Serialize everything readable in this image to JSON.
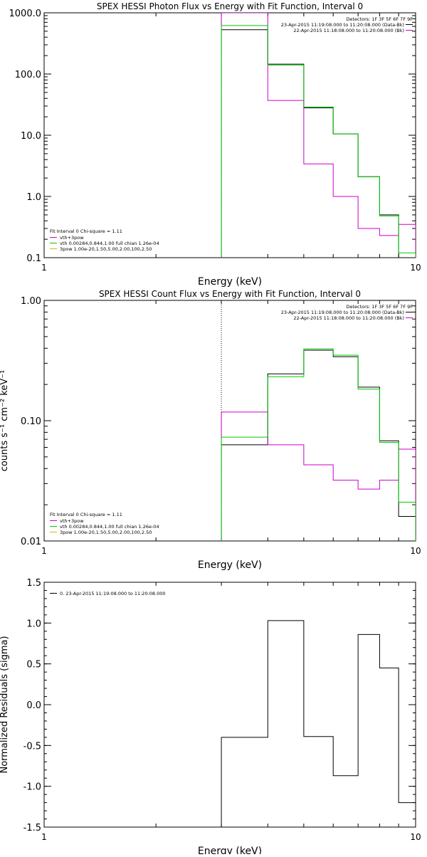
{
  "chart_data": [
    {
      "type": "line",
      "title": "SPEX HESSI Photon Flux vs Energy with Fit Function, Interval 0",
      "xlabel": "Energy (keV)",
      "ylabel": "",
      "xscale": "log",
      "yscale": "log",
      "xlim": [
        1,
        10
      ],
      "ylim": [
        0.1,
        1000
      ],
      "xticks": [
        "1",
        "10"
      ],
      "yticks": [
        {
          "v": 1000,
          "label": "1000.0"
        },
        {
          "v": 100,
          "label": "100.0"
        },
        {
          "v": 10,
          "label": "10.0"
        },
        {
          "v": 1,
          "label": "1.0"
        },
        {
          "v": 0.1,
          "label": "0.1"
        }
      ],
      "fit_line_x": 3,
      "bin_edges": [
        3,
        4,
        5,
        6,
        7,
        8,
        9,
        10
      ],
      "series": [
        {
          "color": "#000000",
          "values": [
            530,
            145,
            28,
            10.5,
            2.1,
            0.5,
            0.1
          ]
        },
        {
          "color": "#cc00cc",
          "values": [
            1000,
            37,
            3.4,
            1.0,
            0.3,
            0.23,
            0.35
          ]
        },
        {
          "color": "#00cc00",
          "values": [
            620,
            140,
            29,
            10.5,
            2.1,
            0.48,
            0.12
          ]
        }
      ],
      "legend_right": {
        "header": "Detectors: 1F 3F 5F 6F 7F 9F",
        "items": [
          {
            "color": "#000000",
            "text": "23-Apr-2015 11:19:08.000 to 11:20:08.000 (Data-Bk)"
          },
          {
            "color": "#cc00cc",
            "text": "22-Apr-2015 11:18:08.000 to 11:20:08.000 (Bk)"
          }
        ]
      },
      "legend_left": {
        "header": "Fit Interval 0   Chi-square = 1.11",
        "items": [
          {
            "color": "#cc00cc",
            "text": "vth+3pow"
          },
          {
            "color": "#00cc00",
            "text": "vth 0.00284,0.844,1.00  full chian 1.26e-04"
          },
          {
            "color": "#e0b000",
            "text": "3pow 1.00e-20,1.50,5.00,2.00,100,2.50"
          }
        ]
      }
    },
    {
      "type": "line",
      "title": "SPEX HESSI Count Flux vs Energy with Fit Function, Interval 0",
      "xlabel": "Energy (keV)",
      "ylabel": "counts s⁻¹ cm⁻² keV⁻¹",
      "xscale": "log",
      "yscale": "log",
      "xlim": [
        1,
        10
      ],
      "ylim": [
        0.01,
        1.0
      ],
      "xticks": [
        "1",
        "10"
      ],
      "yticks": [
        {
          "v": 1.0,
          "label": "1.00"
        },
        {
          "v": 0.1,
          "label": "0.10"
        },
        {
          "v": 0.01,
          "label": "0.01"
        }
      ],
      "fit_line_x": 3,
      "bin_edges": [
        3,
        4,
        5,
        6,
        7,
        8,
        9,
        10
      ],
      "series": [
        {
          "color": "#000000",
          "values": [
            0.063,
            0.245,
            0.385,
            0.34,
            0.19,
            0.068,
            0.016
          ]
        },
        {
          "color": "#cc00cc",
          "values": [
            0.118,
            0.063,
            0.043,
            0.032,
            0.027,
            0.032,
            0.058
          ]
        },
        {
          "color": "#00cc00",
          "values": [
            0.073,
            0.232,
            0.395,
            0.35,
            0.183,
            0.066,
            0.021
          ]
        }
      ],
      "legend_right": {
        "header": "Detectors: 1F 3F 5F 6F 7F 9F",
        "items": [
          {
            "color": "#000000",
            "text": "23-Apr-2015 11:19:08.000 to 11:20:08.000 (Data-Bk)"
          },
          {
            "color": "#cc00cc",
            "text": "22-Apr-2015 11:18:08.000 to 11:20:08.000 (Bk)"
          }
        ]
      },
      "legend_left": {
        "header": "Fit Interval 0   Chi-square = 1.11",
        "items": [
          {
            "color": "#cc00cc",
            "text": "vth+3pow"
          },
          {
            "color": "#00cc00",
            "text": "vth 0.00284,0.844,1.00  full chian 1.26e-04"
          },
          {
            "color": "#e0b000",
            "text": "3pow 1.00e-20,1.50,5.00,2.00,100,2.50"
          }
        ]
      }
    },
    {
      "type": "line",
      "title": "",
      "xlabel": "Energy (keV)",
      "ylabel": "Normalized Residuals (sigma)",
      "xscale": "log",
      "yscale": "linear",
      "xlim": [
        1,
        10
      ],
      "ylim": [
        -1.5,
        1.5
      ],
      "xticks": [
        "1",
        "10"
      ],
      "yticks": [
        {
          "v": 1.5,
          "label": "1.5"
        },
        {
          "v": 1.0,
          "label": "1.0"
        },
        {
          "v": 0.5,
          "label": "0.5"
        },
        {
          "v": 0.0,
          "label": "0.0"
        },
        {
          "v": -0.5,
          "label": "-0.5"
        },
        {
          "v": -1.0,
          "label": "-1.0"
        },
        {
          "v": -1.5,
          "label": "-1.5"
        }
      ],
      "bin_edges": [
        3,
        4,
        5,
        6,
        7,
        8,
        9,
        10
      ],
      "series": [
        {
          "color": "#000000",
          "values": [
            -0.4,
            1.03,
            -0.39,
            -0.87,
            0.86,
            0.45,
            -1.2
          ]
        }
      ],
      "legend_left": {
        "header": "",
        "items": [
          {
            "color": "#000000",
            "text": "0. 23-Apr-2015 11:19:08.000 to 11:20:08.000"
          }
        ]
      }
    }
  ]
}
